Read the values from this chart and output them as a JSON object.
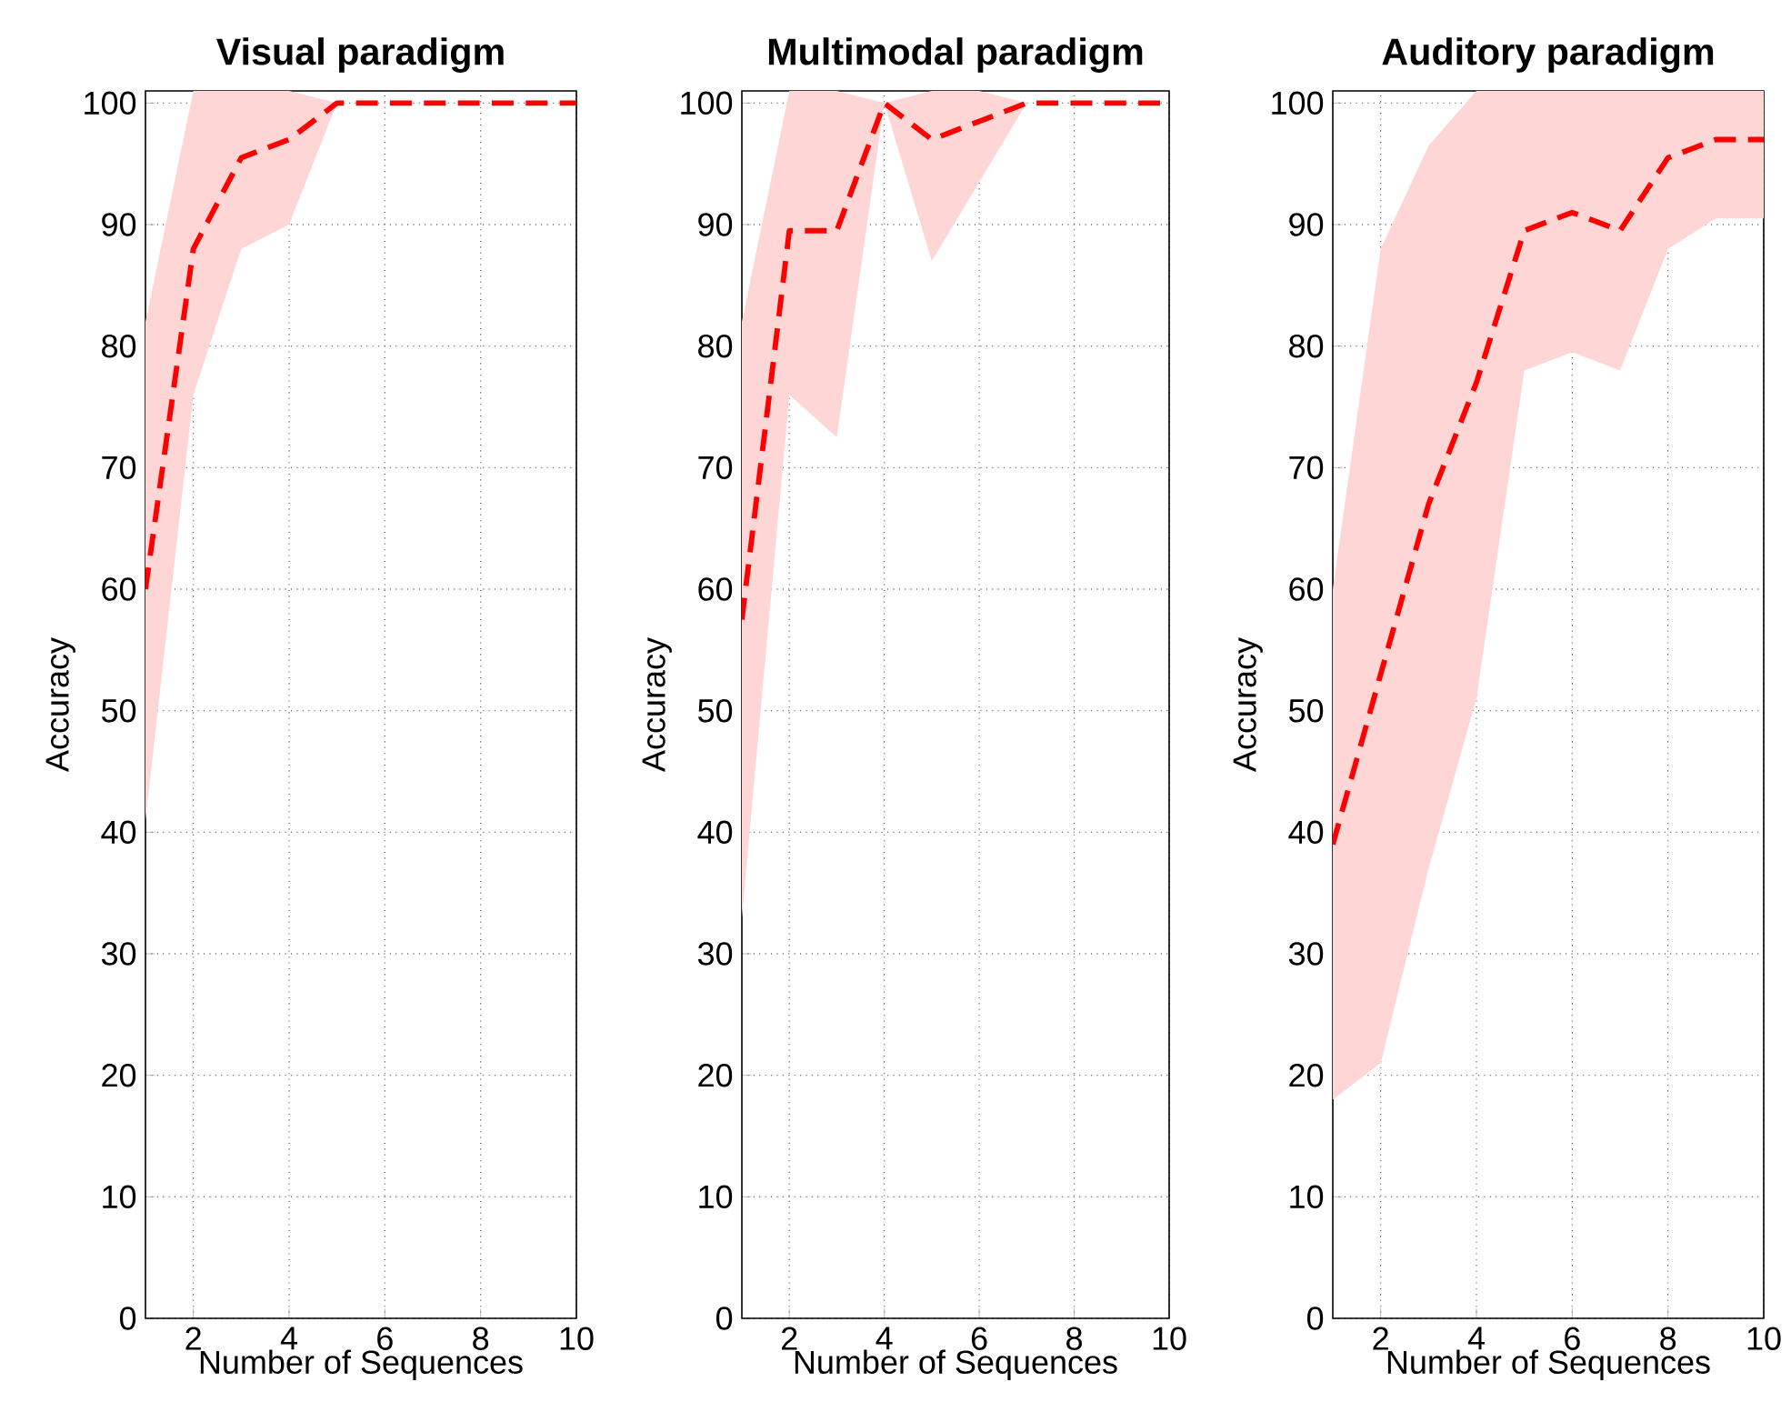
{
  "chart_data": [
    {
      "type": "line",
      "title": "Visual paradigm",
      "xlabel": "Number of Sequences",
      "ylabel": "Accuracy",
      "x": [
        1,
        2,
        3,
        4,
        5,
        6,
        7,
        8,
        9,
        10
      ],
      "xlim": [
        1,
        10
      ],
      "ylim": [
        0,
        101
      ],
      "xticks": [
        2,
        4,
        6,
        8,
        10
      ],
      "yticks": [
        0,
        10,
        20,
        30,
        40,
        50,
        60,
        70,
        80,
        90,
        100
      ],
      "grid": true,
      "line_style": "dashed",
      "marker": "none",
      "series": [
        {
          "color": "#ff0000",
          "values": [
            60,
            88,
            95.5,
            97,
            100,
            100,
            100,
            100,
            100,
            100
          ],
          "lower": [
            41,
            76,
            88,
            90,
            100,
            100,
            100,
            100,
            100,
            100
          ],
          "upper": [
            82,
            101,
            101,
            101,
            100,
            100,
            100,
            100,
            100,
            100
          ]
        }
      ]
    },
    {
      "type": "line",
      "title": "Multimodal paradigm",
      "xlabel": "Number of Sequences",
      "ylabel": "Accuracy",
      "x": [
        1,
        2,
        3,
        4,
        5,
        6,
        7,
        8,
        9,
        10
      ],
      "xlim": [
        1,
        10
      ],
      "ylim": [
        0,
        101
      ],
      "xticks": [
        2,
        4,
        6,
        8,
        10
      ],
      "yticks": [
        0,
        10,
        20,
        30,
        40,
        50,
        60,
        70,
        80,
        90,
        100
      ],
      "grid": true,
      "line_style": "dashed",
      "marker": "none",
      "series": [
        {
          "color": "#ff0000",
          "values": [
            57.5,
            89.5,
            89.5,
            100,
            97,
            98.5,
            100,
            100,
            100,
            100
          ],
          "lower": [
            33,
            76,
            72.5,
            100,
            87,
            93.5,
            100,
            100,
            100,
            100
          ],
          "upper": [
            82,
            101,
            101,
            100,
            101,
            101,
            100,
            100,
            100,
            100
          ]
        }
      ]
    },
    {
      "type": "line",
      "title": "Auditory paradigm",
      "xlabel": "Number of Sequences",
      "ylabel": "Accuracy",
      "x": [
        1,
        2,
        3,
        4,
        5,
        6,
        7,
        8,
        9,
        10
      ],
      "xlim": [
        1,
        10
      ],
      "ylim": [
        0,
        101
      ],
      "xticks": [
        2,
        4,
        6,
        8,
        10
      ],
      "yticks": [
        0,
        10,
        20,
        30,
        40,
        50,
        60,
        70,
        80,
        90,
        100
      ],
      "grid": true,
      "line_style": "dashed",
      "marker": "none",
      "series": [
        {
          "color": "#ff0000",
          "values": [
            39,
            53,
            67,
            77,
            89.5,
            91,
            89.5,
            95.5,
            97,
            97
          ],
          "lower": [
            18,
            21,
            37,
            51,
            78,
            79.5,
            78,
            88,
            90.5,
            90.5
          ],
          "upper": [
            60,
            88,
            96.5,
            101,
            101,
            101,
            101,
            101,
            101,
            101
          ]
        }
      ]
    }
  ]
}
